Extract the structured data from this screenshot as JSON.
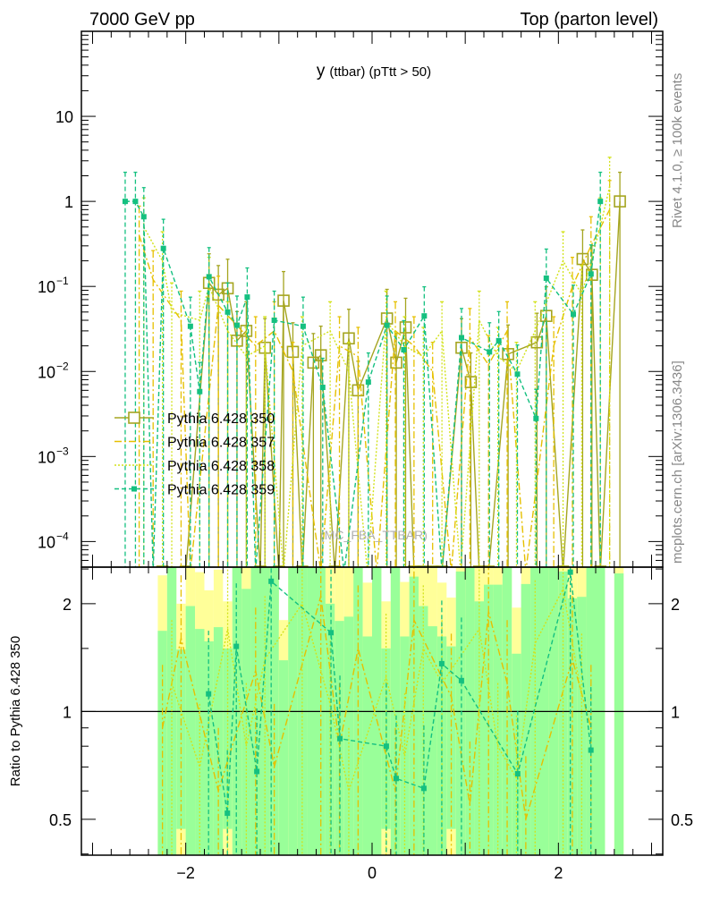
{
  "header": {
    "left": "7000 GeV pp",
    "right": "Top (parton level)"
  },
  "side_labels": {
    "rivet": "Rivet 4.1.0, ≥ 100k events",
    "mcplots": "mcplots.cern.ch [arXiv:1306.3436]"
  },
  "watermark": "(MC_FBA_TTBAR)",
  "chart_data": [
    {
      "type": "line",
      "title_main": "y",
      "title_rest": "(ttbar) (pTtt > 50)",
      "yscale": "log",
      "xlim": [
        -3.12,
        3.12
      ],
      "ylim": [
        5e-05,
        100
      ],
      "ytick_labels": [
        {
          "v": 10,
          "label": "10"
        },
        {
          "v": 1,
          "label": "1"
        },
        {
          "v": 0.1,
          "label": "10",
          "exp": "−1"
        },
        {
          "v": 0.01,
          "label": "10",
          "exp": "−2"
        },
        {
          "v": 0.001,
          "label": "10",
          "exp": "−3"
        },
        {
          "v": 0.0001,
          "label": "10",
          "exp": "−4"
        }
      ],
      "legend_position": "middle-left",
      "series": [
        {
          "name": "Pythia 6.428 350",
          "color": "#a5a520",
          "style": "solid",
          "marker": "open-square",
          "x": [
            -2.25,
            -2.0,
            -1.75,
            -1.65,
            -1.55,
            -1.45,
            -1.35,
            -1.2,
            -1.15,
            -1.0,
            -0.95,
            -0.85,
            -0.75,
            -0.63,
            -0.55,
            -0.4,
            -0.25,
            -0.15,
            0.16,
            0.26,
            0.36,
            0.45,
            0.55,
            0.65,
            0.75,
            0.96,
            1.06,
            1.15,
            1.25,
            1.46,
            1.77,
            1.87,
            2.05,
            2.26,
            2.36,
            2.45,
            2.66
          ],
          "y": [
            0,
            0,
            0.11,
            0.08,
            0.095,
            0.023,
            0.03,
            0,
            0.019,
            0,
            0.068,
            0.017,
            0,
            0.0127,
            0.0155,
            0,
            0.0245,
            0.006,
            0.042,
            0.0127,
            0.033,
            0,
            0,
            0,
            0,
            0.019,
            0.0075,
            0,
            0,
            0.016,
            0.022,
            0.045,
            0,
            0.21,
            0.137,
            0,
            1.0
          ]
        },
        {
          "name": "Pythia 6.428 357",
          "color": "#e6c000",
          "style": "dashdot",
          "marker": "none",
          "x": [
            -2.5,
            -2.35,
            -2.05,
            -1.95,
            -1.65,
            -1.25,
            -1.05,
            -0.85,
            -0.55,
            -0.35,
            -0.15,
            0.05,
            0.25,
            0.45,
            0.65,
            0.85,
            1.05,
            1.25,
            1.45,
            1.65,
            1.95,
            2.15,
            2.35,
            2.55
          ],
          "y": [
            0.4,
            0.12,
            0.04,
            0,
            0.06,
            0.02,
            0.03,
            0.01,
            0,
            0.02,
            0.015,
            0,
            0.03,
            0.02,
            0.01,
            0,
            0.025,
            0.012,
            0.03,
            0,
            0.02,
            0.1,
            0.3,
            0.8
          ]
        },
        {
          "name": "Pythia 6.428 358",
          "color": "#d2e21a",
          "style": "dotted",
          "marker": "none",
          "x": [
            -2.45,
            -2.25,
            -2.15,
            -1.85,
            -1.75,
            -1.55,
            -1.35,
            -1.15,
            -0.95,
            -0.75,
            -0.45,
            -0.25,
            -0.05,
            0.15,
            0.35,
            0.55,
            0.75,
            0.95,
            1.15,
            1.35,
            1.55,
            1.75,
            2.05,
            2.25,
            2.45,
            2.55
          ],
          "y": [
            0.5,
            0.2,
            0.05,
            0.04,
            0.1,
            0.03,
            0.015,
            0.02,
            0,
            0.02,
            0.03,
            0.01,
            0,
            0.04,
            0.02,
            0.015,
            0.03,
            0,
            0.04,
            0.015,
            0.01,
            0.03,
            0.2,
            0.08,
            0.5,
            1.5
          ]
        },
        {
          "name": "Pythia 6.428 359",
          "color": "#14c080",
          "style": "dashed",
          "marker": "filled-square",
          "x": [
            -2.65,
            -2.54,
            -2.45,
            -2.35,
            -2.24,
            -1.95,
            -1.85,
            -1.75,
            -1.55,
            -1.45,
            -1.34,
            -1.25,
            -1.05,
            -0.74,
            -0.53,
            -0.3,
            -0.04,
            0.16,
            0.34,
            0.56,
            0.75,
            0.96,
            1.26,
            1.36,
            1.56,
            1.76,
            1.87,
            2.16,
            2.35,
            2.45
          ],
          "y": [
            1,
            1,
            0.66,
            0,
            0.28,
            0.034,
            0.0058,
            0.13,
            0.05,
            0.035,
            0.075,
            0,
            0.04,
            0.034,
            0.0065,
            0,
            0.0075,
            0.035,
            0.018,
            0.045,
            0,
            0.025,
            0.017,
            0.023,
            0.0093,
            0.0028,
            0.125,
            0.047,
            0.14,
            1.0
          ]
        }
      ]
    },
    {
      "type": "line",
      "ylabel": "Ratio to Pythia 6.428 350",
      "yscale": "log",
      "ylim": [
        0.397,
        2.53
      ],
      "xlim": [
        -3.12,
        3.12
      ],
      "xtick_labels": [
        {
          "v": -2,
          "label": "−2"
        },
        {
          "v": 0,
          "label": "0"
        },
        {
          "v": 2,
          "label": "2"
        }
      ],
      "ytick_labels": [
        {
          "v": 2,
          "label": "2"
        },
        {
          "v": 1,
          "label": "1"
        },
        {
          "v": 0.5,
          "label": "0.5"
        }
      ],
      "band_bin_start": -2.3,
      "band_bin_width": 0.1,
      "band_green_upper": [
        1.68,
        2.6,
        1.49,
        1.97,
        1.7,
        1.57,
        1.72,
        1.5,
        2.6,
        2.2,
        2.6,
        2.6,
        2.6,
        1.39,
        2.6,
        2.6,
        2.6,
        2.6,
        2.0,
        1.79,
        1.84,
        2.6,
        1.62,
        2.6,
        1.5,
        2.6,
        1.62,
        2.38,
        1.97,
        1.73,
        1.62,
        1.52,
        2.46,
        2.6,
        2.03,
        2.26,
        2.26,
        2.6,
        1.45,
        2.27,
        2.6,
        2.6,
        2.6,
        2.46,
        2.07,
        2.09,
        2.6,
        2.6,
        0,
        2.43
      ],
      "band_yellow_upper": [
        2.4,
        2.6,
        2.0,
        2.6,
        2.45,
        2.18,
        2.49,
        2.03,
        2.6,
        2.6,
        2.6,
        2.6,
        2.6,
        1.8,
        2.6,
        2.6,
        2.6,
        2.6,
        2.6,
        2.6,
        2.6,
        2.6,
        2.29,
        2.6,
        2.03,
        2.6,
        2.3,
        2.6,
        2.6,
        2.6,
        2.29,
        2.08,
        2.6,
        2.6,
        2.6,
        2.6,
        2.6,
        2.6,
        1.95,
        2.6,
        2.6,
        2.6,
        2.6,
        2.6,
        2.6,
        2.6,
        2.6,
        2.6,
        0,
        2.6
      ],
      "band_green_lower": [
        0.39,
        0.39,
        0.47,
        0.39,
        0.39,
        0.39,
        0.39,
        0.47,
        0.39,
        0.39,
        0.39,
        0.39,
        0.39,
        0.39,
        0.39,
        0.39,
        0.39,
        0.39,
        0.39,
        0.39,
        0.39,
        0.39,
        0.39,
        0.39,
        0.47,
        0.39,
        0.39,
        0.39,
        0.39,
        0.39,
        0.39,
        0.47,
        0.39,
        0.39,
        0.39,
        0.39,
        0.39,
        0.39,
        0.39,
        0.39,
        0.39,
        0.39,
        0.39,
        0.39,
        0.39,
        0.39,
        0.39,
        0.39,
        0,
        0.39
      ],
      "series": [
        {
          "name": "Pythia 6.428 357",
          "color": "#e6c000",
          "style": "dashdot",
          "x": [
            -2.25,
            -2.05,
            -1.65,
            -1.25,
            -1.05,
            -0.55,
            -0.35,
            -0.15,
            0.25,
            0.45,
            0.85,
            1.05,
            1.25,
            1.45,
            1.65,
            2.15,
            2.35
          ],
          "y": [
            0.9,
            1.6,
            0.6,
            1.3,
            0.7,
            2.1,
            0.8,
            1.5,
            0.6,
            1.8,
            1.1,
            0.55,
            1.9,
            1.2,
            0.5,
            1.4,
            0.9
          ]
        },
        {
          "name": "Pythia 6.428 358",
          "color": "#d2e21a",
          "style": "dotted",
          "x": [
            -2.15,
            -1.85,
            -1.55,
            -1.35,
            -1.15,
            -0.75,
            -0.45,
            -0.25,
            0.15,
            0.35,
            0.55,
            0.75,
            1.15,
            1.35,
            1.55,
            1.75,
            2.05,
            2.25
          ],
          "y": [
            1.2,
            0.7,
            1.7,
            0.8,
            1.4,
            2.0,
            1.05,
            0.6,
            1.25,
            0.75,
            1.5,
            1.2,
            1.7,
            0.8,
            0.65,
            1.55,
            2.2,
            1.1
          ]
        },
        {
          "name": "Pythia 6.428 359",
          "color": "#14c080",
          "style": "dashed",
          "x": [
            -1.755,
            -1.553,
            -1.457,
            -1.237,
            -1.083,
            -0.441,
            -0.345,
            0.153,
            0.259,
            0.556,
            0.748,
            0.959,
            1.563,
            2.128,
            2.349
          ],
          "y": [
            1.12,
            0.52,
            1.52,
            0.68,
            2.31,
            1.66,
            0.84,
            0.8,
            0.65,
            0.61,
            1.36,
            1.22,
            0.67,
            2.45,
            0.78
          ]
        }
      ]
    }
  ]
}
